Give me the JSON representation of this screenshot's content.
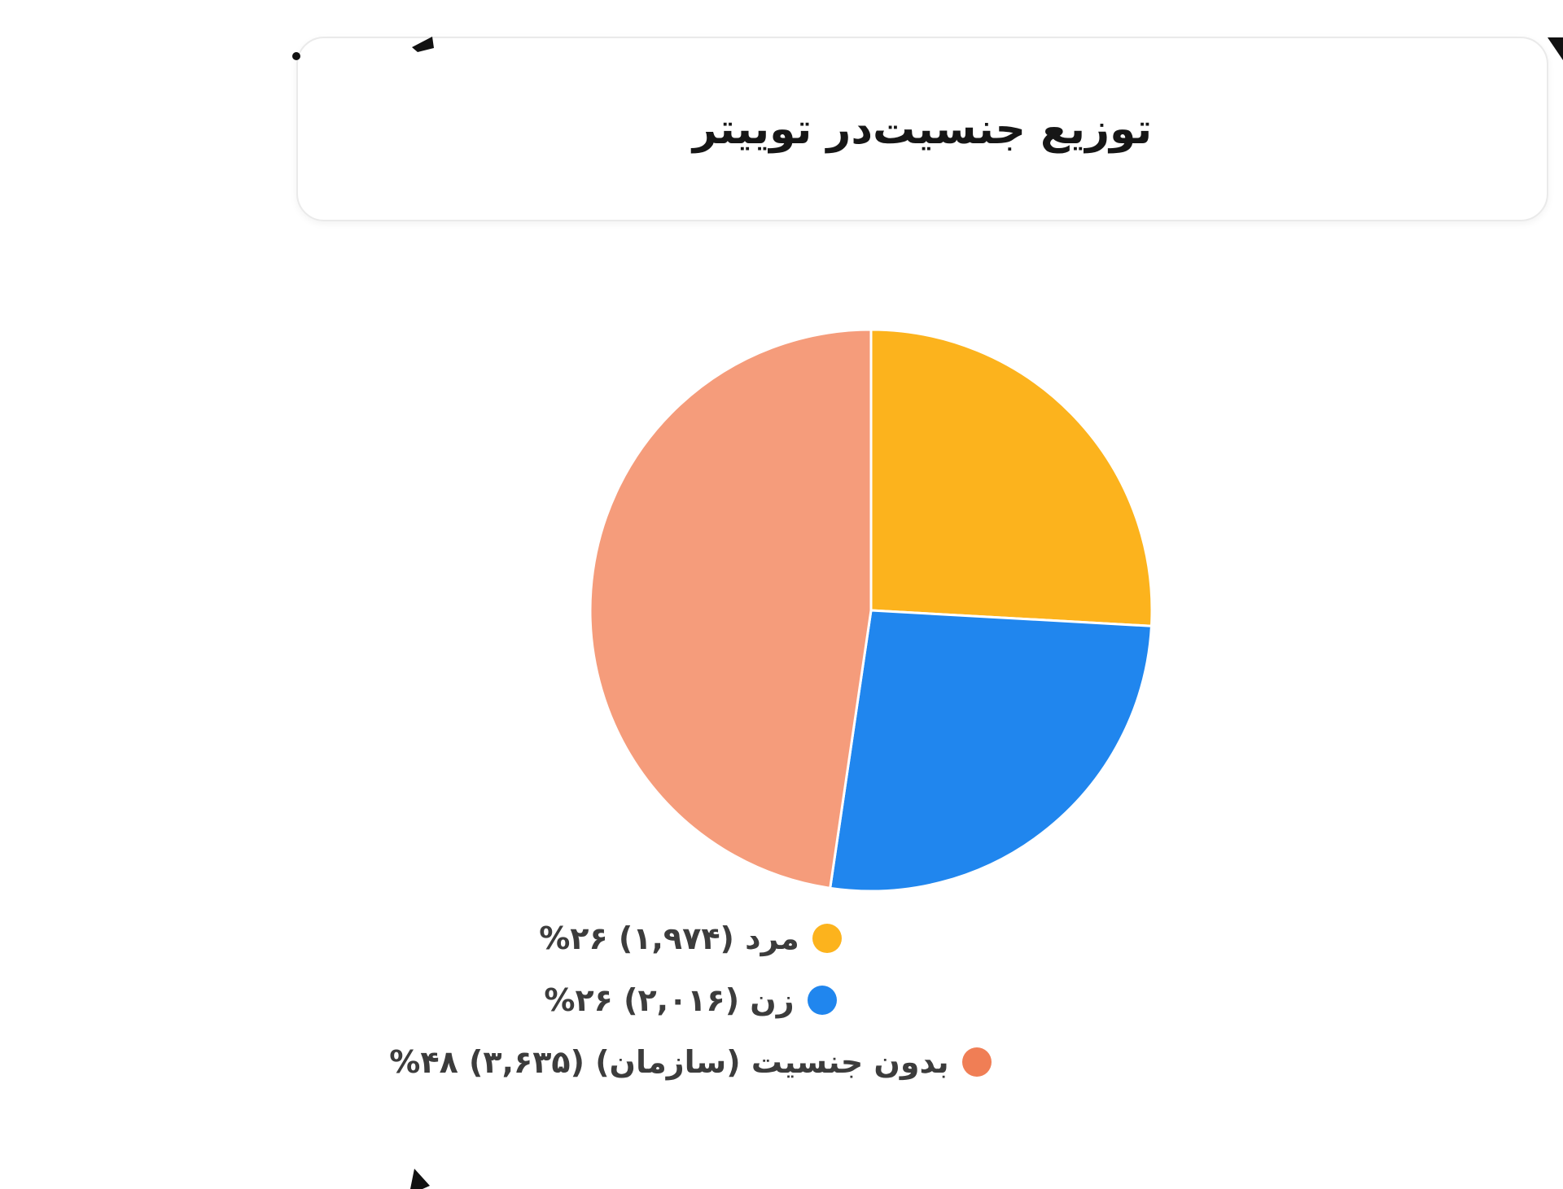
{
  "page": {
    "background": "#ffffff"
  },
  "card": {
    "title": "توزیع جنسیت‌در توییتر",
    "border_color": "#eaeaea"
  },
  "chart_data": {
    "type": "pie",
    "title": "توزیع جنسیت‌در توییتر",
    "start_at": "12-oclock",
    "direction": "clockwise",
    "legend_position": "bottom",
    "total": 7625,
    "slices": [
      {
        "label": "مرد",
        "value": 1974,
        "percent": 26,
        "count_fa": "۱,۹۷۴",
        "percent_fa": "۲۶%",
        "legend_text": "مرد (۱,۹۷۴) ۲۶%",
        "color": "#FCB31D",
        "legend_dot_color": "#FCB31D"
      },
      {
        "label": "زن",
        "value": 2016,
        "percent": 26,
        "count_fa": "۲,۰۱۶",
        "percent_fa": "۲۶%",
        "legend_text": "زن (۲,۰۱۶) ۲۶%",
        "color": "#2086EE",
        "legend_dot_color": "#2086EE"
      },
      {
        "label": "بدون جنسیت (سازمان)",
        "value": 3635,
        "percent": 48,
        "count_fa": "۳,۶۳۵",
        "percent_fa": "۴۸%",
        "legend_text": "بدون جنسیت (سازمان) (۳,۶۳۵) ۴۸%",
        "color": "#F59C7B",
        "legend_dot_color": "#F07E55"
      }
    ]
  }
}
